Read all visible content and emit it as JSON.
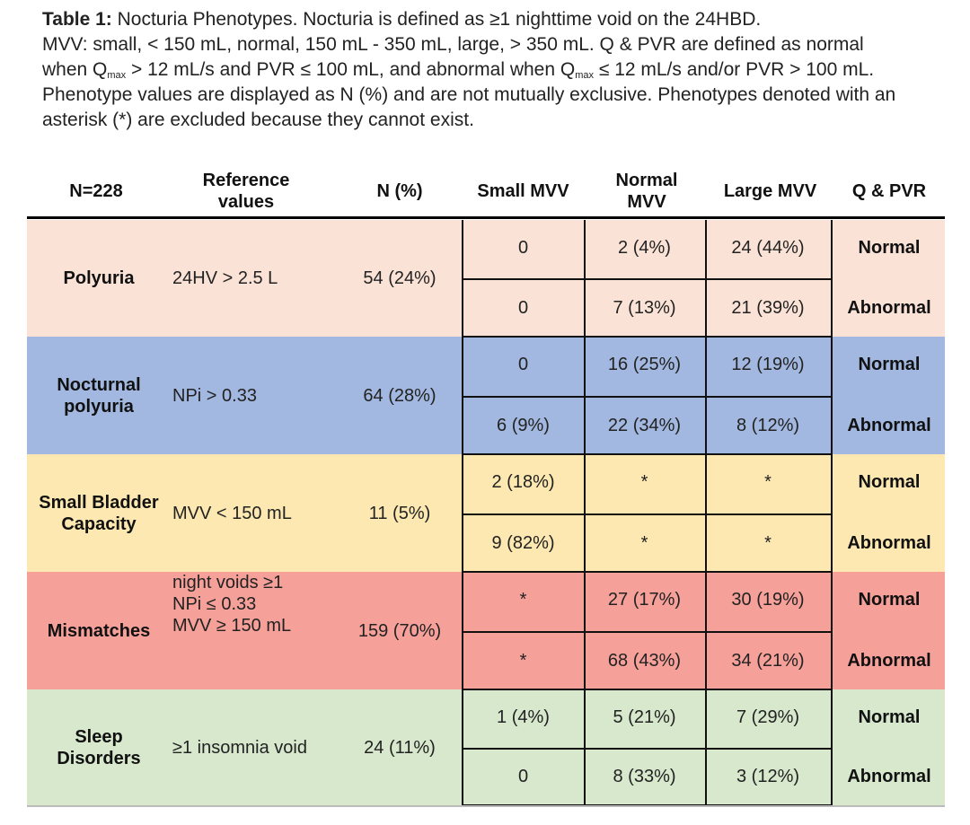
{
  "caption": {
    "bold": "Table 1:",
    "line1_rest": " Nocturia Phenotypes. Nocturia is defined as ≥1 nighttime void on the 24HBD.",
    "line2_a": "MVV: small, < 150 mL, normal, 150 mL - 350 mL, large, > 350 mL. Q & PVR are defined as normal",
    "line3_a": "when Q",
    "sub_max": "max",
    "line3_b": " > 12 mL/s and PVR ≤ 100 mL, and abnormal when Q",
    "line3_c": " ≤ 12 mL/s and/or PVR > 100 mL.",
    "line4": "Phenotype values are displayed as N (%) and are not mutually exclusive. Phenotypes denoted with an",
    "line5": "asterisk (*) are excluded because they cannot exist."
  },
  "headers": {
    "n": "N=228",
    "ref": "Reference values",
    "npct": "N (%)",
    "small": "Small MVV",
    "normal": "Normal MVV",
    "large": "Large MVV",
    "qpvr": "Q & PVR"
  },
  "colors": {
    "polyuria": "#fae3d6",
    "nocturnal": "#a2b8e0",
    "small_bladder": "#fce8b0",
    "mismatches": "#f6a09a",
    "sleep": "#d7e8cd"
  },
  "rows": [
    {
      "label": "Polyuria",
      "ref": "24HV > 2.5 L",
      "npct": "54 (24%)",
      "normal": {
        "small": "0",
        "norm": "2 (4%)",
        "large": "24 (44%)",
        "qp": "Normal"
      },
      "abnormal": {
        "small": "0",
        "norm": "7 (13%)",
        "large": "21 (39%)",
        "qp": "Abnormal"
      }
    },
    {
      "label": "Nocturnal polyuria",
      "ref": "NPi > 0.33",
      "npct": "64 (28%)",
      "normal": {
        "small": "0",
        "norm": "16 (25%)",
        "large": "12 (19%)",
        "qp": "Normal"
      },
      "abnormal": {
        "small": "6 (9%)",
        "norm": "22 (34%)",
        "large": "8 (12%)",
        "qp": "Abnormal"
      }
    },
    {
      "label": "Small Bladder Capacity",
      "ref": "MVV < 150 mL",
      "npct": "11 (5%)",
      "normal": {
        "small": "2 (18%)",
        "norm": "*",
        "large": "*",
        "qp": "Normal"
      },
      "abnormal": {
        "small": "9 (82%)",
        "norm": "*",
        "large": "*",
        "qp": "Abnormal"
      }
    },
    {
      "label": "Mismatches",
      "ref1": "night voids ≥1",
      "ref2": "NPi ≤ 0.33",
      "ref3": "MVV ≥ 150 mL",
      "npct": "159 (70%)",
      "normal": {
        "small": "*",
        "norm": "27 (17%)",
        "large": "30 (19%)",
        "qp": "Normal"
      },
      "abnormal": {
        "small": "*",
        "norm": "68 (43%)",
        "large": "34 (21%)",
        "qp": "Abnormal"
      }
    },
    {
      "label": "Sleep Disorders",
      "ref": "≥1 insomnia void",
      "npct": "24 (11%)",
      "normal": {
        "small": "1 (4%)",
        "norm": "5 (21%)",
        "large": "7 (29%)",
        "qp": "Normal"
      },
      "abnormal": {
        "small": "0",
        "norm": "8 (33%)",
        "large": "3 (12%)",
        "qp": "Abnormal"
      }
    }
  ]
}
